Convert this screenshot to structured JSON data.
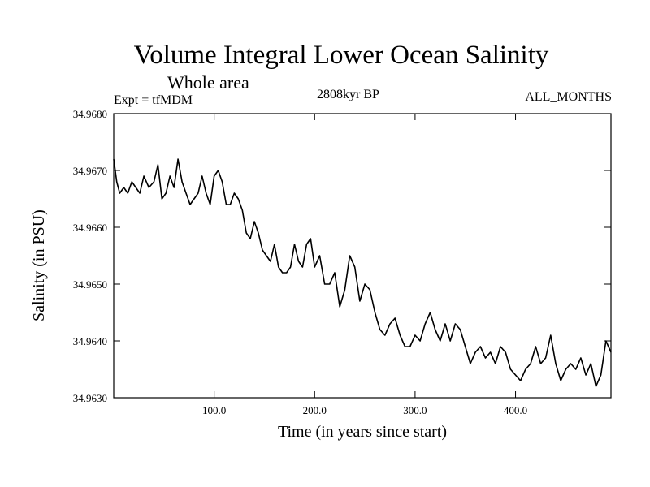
{
  "chart_data": {
    "type": "line",
    "title": "Volume Integral Lower Ocean Salinity",
    "subtitle": "Whole area",
    "experiment": "Expt = tfMDM",
    "period": "2808kyr BP",
    "months": "ALL_MONTHS",
    "xlabel": "Time (in years since start)",
    "ylabel": "Salinity (in PSU)",
    "xlim": [
      0,
      495
    ],
    "ylim": [
      34.963,
      34.968
    ],
    "x_ticks": [
      {
        "value": 100,
        "label": "100.0"
      },
      {
        "value": 200,
        "label": "200.0"
      },
      {
        "value": 300,
        "label": "300.0"
      },
      {
        "value": 400,
        "label": "400.0"
      }
    ],
    "y_ticks": [
      {
        "value": 34.963,
        "label": "34.9630"
      },
      {
        "value": 34.964,
        "label": "34.9640"
      },
      {
        "value": 34.965,
        "label": "34.9650"
      },
      {
        "value": 34.966,
        "label": "34.9660"
      },
      {
        "value": 34.967,
        "label": "34.9670"
      },
      {
        "value": 34.968,
        "label": "34.9680"
      }
    ],
    "series": [
      {
        "name": "Salinity",
        "x": [
          0,
          3,
          6,
          10,
          14,
          18,
          22,
          26,
          30,
          35,
          40,
          44,
          48,
          52,
          56,
          60,
          64,
          68,
          72,
          76,
          80,
          84,
          88,
          92,
          96,
          100,
          104,
          108,
          112,
          116,
          120,
          124,
          128,
          132,
          136,
          140,
          144,
          148,
          152,
          156,
          160,
          164,
          168,
          172,
          176,
          180,
          184,
          188,
          192,
          196,
          200,
          205,
          210,
          215,
          220,
          225,
          230,
          235,
          240,
          245,
          250,
          255,
          260,
          265,
          270,
          275,
          280,
          285,
          290,
          295,
          300,
          305,
          310,
          315,
          320,
          325,
          330,
          335,
          340,
          345,
          350,
          355,
          360,
          365,
          370,
          375,
          380,
          385,
          390,
          395,
          400,
          405,
          410,
          415,
          420,
          425,
          430,
          435,
          440,
          445,
          450,
          455,
          460,
          465,
          470,
          475,
          480,
          485,
          490,
          495
        ],
        "values": [
          34.9672,
          34.9668,
          34.9666,
          34.9667,
          34.9666,
          34.9668,
          34.9667,
          34.9666,
          34.9669,
          34.9667,
          34.9668,
          34.9671,
          34.9665,
          34.9666,
          34.9669,
          34.9667,
          34.9672,
          34.9668,
          34.9666,
          34.9664,
          34.9665,
          34.9666,
          34.9669,
          34.9666,
          34.9664,
          34.9669,
          34.967,
          34.9668,
          34.9664,
          34.9664,
          34.9666,
          34.9665,
          34.9663,
          34.9659,
          34.9658,
          34.9661,
          34.9659,
          34.9656,
          34.9655,
          34.9654,
          34.9657,
          34.9653,
          34.9652,
          34.9652,
          34.9653,
          34.9657,
          34.9654,
          34.9653,
          34.9657,
          34.9658,
          34.9653,
          34.9655,
          34.965,
          34.965,
          34.9652,
          34.9646,
          34.9649,
          34.9655,
          34.9653,
          34.9647,
          34.965,
          34.9649,
          34.9645,
          34.9642,
          34.9641,
          34.9643,
          34.9644,
          34.9641,
          34.9639,
          34.9639,
          34.9641,
          34.964,
          34.9643,
          34.9645,
          34.9642,
          34.964,
          34.9643,
          34.964,
          34.9643,
          34.9642,
          34.9639,
          34.9636,
          34.9638,
          34.9639,
          34.9637,
          34.9638,
          34.9636,
          34.9639,
          34.9638,
          34.9635,
          34.9634,
          34.9633,
          34.9635,
          34.9636,
          34.9639,
          34.9636,
          34.9637,
          34.9641,
          34.9636,
          34.9633,
          34.9635,
          34.9636,
          34.9635,
          34.9637,
          34.9634,
          34.9636,
          34.9632,
          34.9634,
          34.964,
          34.9638
        ]
      }
    ]
  }
}
